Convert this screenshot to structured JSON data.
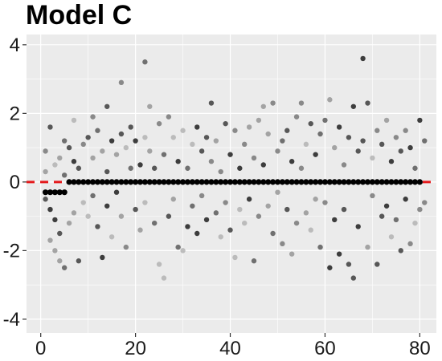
{
  "chart_data": {
    "type": "scatter",
    "title": "Model C",
    "xlabel": "",
    "ylabel": "",
    "xlim": [
      -3,
      83.5
    ],
    "ylim": [
      -4.4,
      4.3
    ],
    "x_ticks": [
      0,
      20,
      40,
      60,
      80
    ],
    "x_tick_labels": [
      "0",
      "20",
      "40",
      "60",
      "80"
    ],
    "y_ticks": [
      -4,
      -2,
      0,
      2,
      4
    ],
    "y_tick_labels": [
      "-4",
      "-2",
      "0",
      "2",
      "4"
    ],
    "grid": true,
    "background": "#ebebeb",
    "grid_color": "#ffffff",
    "reference_line": {
      "y": 0,
      "style": "dashed",
      "color": "#e41a1c"
    },
    "series": [
      {
        "values": [
          [
            1,
            -0.3
          ],
          [
            2,
            -0.3
          ],
          [
            3,
            -0.3
          ],
          [
            4,
            -0.3
          ],
          [
            5,
            -0.3
          ],
          [
            6,
            0
          ],
          [
            7,
            0
          ],
          [
            8,
            0
          ],
          [
            9,
            0
          ],
          [
            10,
            0
          ],
          [
            11,
            0
          ],
          [
            12,
            0
          ],
          [
            13,
            0
          ],
          [
            14,
            0
          ],
          [
            15,
            0
          ],
          [
            16,
            0
          ],
          [
            17,
            0
          ],
          [
            18,
            0
          ],
          [
            19,
            0
          ],
          [
            20,
            0
          ],
          [
            21,
            0
          ],
          [
            22,
            0
          ],
          [
            23,
            0
          ],
          [
            24,
            0
          ],
          [
            25,
            0
          ],
          [
            26,
            0
          ],
          [
            27,
            0
          ],
          [
            28,
            0
          ],
          [
            29,
            0
          ],
          [
            30,
            0
          ],
          [
            31,
            0
          ],
          [
            32,
            0
          ],
          [
            33,
            0
          ],
          [
            34,
            0
          ],
          [
            35,
            0
          ],
          [
            36,
            0
          ],
          [
            37,
            0
          ],
          [
            38,
            0
          ],
          [
            39,
            0
          ],
          [
            40,
            0
          ],
          [
            41,
            0
          ],
          [
            42,
            0
          ],
          [
            43,
            0
          ],
          [
            44,
            0
          ],
          [
            45,
            0
          ],
          [
            46,
            0
          ],
          [
            47,
            0
          ],
          [
            48,
            0
          ],
          [
            49,
            0
          ],
          [
            50,
            0
          ],
          [
            51,
            0
          ],
          [
            52,
            0
          ],
          [
            53,
            0
          ],
          [
            54,
            0
          ],
          [
            55,
            0
          ],
          [
            56,
            0
          ],
          [
            57,
            0
          ],
          [
            58,
            0
          ],
          [
            59,
            0
          ],
          [
            60,
            0
          ],
          [
            61,
            0
          ],
          [
            62,
            0
          ],
          [
            63,
            0
          ],
          [
            64,
            0
          ],
          [
            65,
            0
          ],
          [
            66,
            0
          ],
          [
            67,
            0
          ],
          [
            68,
            0
          ],
          [
            69,
            0
          ],
          [
            70,
            0
          ],
          [
            71,
            0
          ],
          [
            72,
            0
          ],
          [
            73,
            0
          ],
          [
            74,
            0
          ],
          [
            75,
            0
          ],
          [
            76,
            0
          ],
          [
            77,
            0
          ],
          [
            78,
            0
          ],
          [
            79,
            0
          ],
          [
            80,
            0
          ]
        ],
        "color": "#000000"
      },
      {
        "values": [
          [
            1,
            0.9
          ],
          [
            1,
            0.3
          ],
          [
            1,
            -0.5
          ],
          [
            2,
            1.6
          ],
          [
            2,
            -0.8
          ],
          [
            2,
            -1.7
          ],
          [
            3,
            0.5
          ],
          [
            3,
            -1.1
          ],
          [
            3,
            -2.0
          ],
          [
            4,
            0.7
          ],
          [
            4,
            -1.5
          ],
          [
            4,
            -2.3
          ],
          [
            5,
            0.2
          ],
          [
            5,
            -2.5
          ],
          [
            5,
            1.2
          ],
          [
            6,
            1.0
          ],
          [
            6,
            -1.2
          ],
          [
            7,
            1.8
          ],
          [
            7,
            0.6
          ],
          [
            7,
            -0.9
          ],
          [
            8,
            -2.3
          ],
          [
            8,
            0.4
          ],
          [
            9,
            1.1
          ],
          [
            9,
            -0.6
          ],
          [
            10,
            1.3
          ],
          [
            10,
            -1.0
          ],
          [
            11,
            1.9
          ],
          [
            11,
            0.7
          ],
          [
            11,
            -0.4
          ],
          [
            12,
            1.5
          ],
          [
            12,
            -1.3
          ],
          [
            13,
            0.9
          ],
          [
            13,
            -2.2
          ],
          [
            14,
            2.2
          ],
          [
            14,
            0.3
          ],
          [
            14,
            -0.7
          ],
          [
            15,
            1.2
          ],
          [
            15,
            -1.6
          ],
          [
            16,
            0.8
          ],
          [
            16,
            -0.3
          ],
          [
            17,
            2.9
          ],
          [
            17,
            1.4
          ],
          [
            17,
            -1.0
          ],
          [
            18,
            1.0
          ],
          [
            18,
            -1.9
          ],
          [
            19,
            1.6
          ],
          [
            19,
            0.4
          ],
          [
            20,
            -0.8
          ],
          [
            20,
            1.2
          ],
          [
            21,
            0.5
          ],
          [
            21,
            -1.4
          ],
          [
            22,
            3.5
          ],
          [
            22,
            1.3
          ],
          [
            22,
            -0.6
          ],
          [
            23,
            2.2
          ],
          [
            23,
            0.9
          ],
          [
            24,
            -1.2
          ],
          [
            24,
            0.4
          ],
          [
            25,
            1.7
          ],
          [
            25,
            -2.4
          ],
          [
            26,
            0.8
          ],
          [
            26,
            -2.8
          ],
          [
            27,
            1.9
          ],
          [
            27,
            -1.0
          ],
          [
            28,
            1.3
          ],
          [
            28,
            -0.5
          ],
          [
            29,
            0.6
          ],
          [
            29,
            -1.9
          ],
          [
            30,
            1.5
          ],
          [
            30,
            -2.0
          ],
          [
            31,
            0.4
          ],
          [
            31,
            -1.3
          ],
          [
            32,
            1.1
          ],
          [
            32,
            -0.7
          ],
          [
            33,
            1.6
          ],
          [
            33,
            -1.5
          ],
          [
            34,
            0.9
          ],
          [
            34,
            -0.4
          ],
          [
            35,
            1.3
          ],
          [
            35,
            -1.1
          ],
          [
            36,
            2.3
          ],
          [
            36,
            0.6
          ],
          [
            37,
            1.2
          ],
          [
            37,
            -0.9
          ],
          [
            38,
            0.3
          ],
          [
            38,
            -1.6
          ],
          [
            39,
            1.7
          ],
          [
            39,
            -0.6
          ],
          [
            40,
            0.8
          ],
          [
            40,
            -1.4
          ],
          [
            41,
            1.5
          ],
          [
            41,
            -2.2
          ],
          [
            42,
            0.4
          ],
          [
            42,
            -0.8
          ],
          [
            43,
            1.1
          ],
          [
            43,
            -1.2
          ],
          [
            44,
            1.6
          ],
          [
            44,
            -0.5
          ],
          [
            45,
            0.7
          ],
          [
            45,
            -2.3
          ],
          [
            46,
            1.8
          ],
          [
            46,
            -1.0
          ],
          [
            47,
            2.2
          ],
          [
            47,
            0.5
          ],
          [
            48,
            1.4
          ],
          [
            48,
            -0.7
          ],
          [
            49,
            2.3
          ],
          [
            49,
            -1.5
          ],
          [
            50,
            0.9
          ],
          [
            50,
            -0.3
          ],
          [
            51,
            1.2
          ],
          [
            51,
            -1.8
          ],
          [
            52,
            1.5
          ],
          [
            52,
            -0.8
          ],
          [
            53,
            0.6
          ],
          [
            53,
            -2.1
          ],
          [
            54,
            1.9
          ],
          [
            54,
            -1.2
          ],
          [
            55,
            2.3
          ],
          [
            55,
            0.4
          ],
          [
            56,
            1.1
          ],
          [
            56,
            -0.9
          ],
          [
            57,
            1.7
          ],
          [
            57,
            -1.4
          ],
          [
            58,
            0.8
          ],
          [
            58,
            -0.5
          ],
          [
            59,
            1.4
          ],
          [
            59,
            -1.9
          ],
          [
            60,
            1.8
          ],
          [
            60,
            -0.6
          ],
          [
            61,
            2.4
          ],
          [
            61,
            -2.5
          ],
          [
            62,
            1.0
          ],
          [
            62,
            -1.1
          ],
          [
            63,
            1.6
          ],
          [
            63,
            -2.1
          ],
          [
            64,
            0.5
          ],
          [
            64,
            -0.8
          ],
          [
            65,
            1.3
          ],
          [
            65,
            -2.4
          ],
          [
            66,
            2.2
          ],
          [
            66,
            -2.8
          ],
          [
            67,
            0.9
          ],
          [
            67,
            -1.3
          ],
          [
            68,
            3.6
          ],
          [
            68,
            1.2
          ],
          [
            69,
            2.3
          ],
          [
            69,
            -1.9
          ],
          [
            70,
            0.7
          ],
          [
            70,
            -0.4
          ],
          [
            71,
            1.5
          ],
          [
            71,
            -2.4
          ],
          [
            72,
            1.1
          ],
          [
            72,
            -1.0
          ],
          [
            73,
            1.8
          ],
          [
            73,
            -0.7
          ],
          [
            74,
            0.6
          ],
          [
            74,
            -1.6
          ],
          [
            75,
            1.3
          ],
          [
            75,
            -1.1
          ],
          [
            76,
            0.9
          ],
          [
            76,
            -2.0
          ],
          [
            77,
            1.5
          ],
          [
            77,
            -0.5
          ],
          [
            78,
            1.0
          ],
          [
            78,
            -1.8
          ],
          [
            79,
            0.4
          ],
          [
            79,
            -1.2
          ],
          [
            80,
            1.8
          ],
          [
            80,
            -0.8
          ],
          [
            81,
            1.2
          ],
          [
            81,
            -0.6
          ]
        ],
        "color": "#555555"
      }
    ]
  }
}
